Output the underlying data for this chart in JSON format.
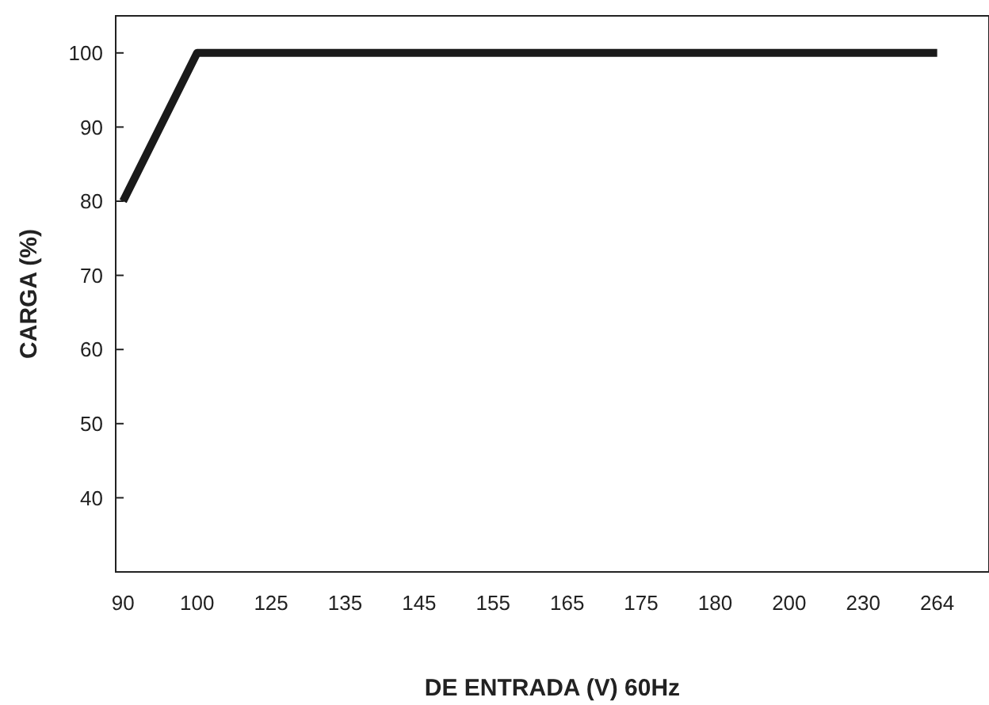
{
  "chart_data": {
    "type": "line",
    "xlabel": "DE ENTRADA (V) 60Hz",
    "ylabel": "CARGA (%)",
    "categories": [
      "90",
      "100",
      "125",
      "135",
      "145",
      "155",
      "165",
      "175",
      "180",
      "200",
      "230",
      "264"
    ],
    "series": [
      {
        "color": "#1a1a1a",
        "values": [
          80,
          100,
          100,
          100,
          100,
          100,
          100,
          100,
          100,
          100,
          100,
          100
        ]
      }
    ],
    "ylim": [
      30,
      105
    ],
    "yticks": [
      40,
      50,
      60,
      70,
      80,
      90,
      100
    ],
    "grid": false,
    "marker": "none",
    "line_style": "solid"
  }
}
